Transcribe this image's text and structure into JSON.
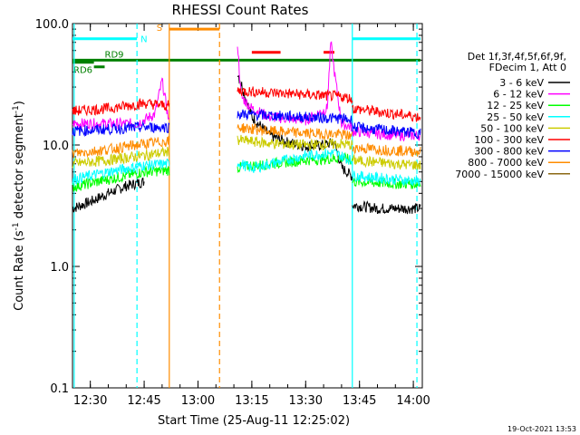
{
  "chart_data": {
    "type": "line",
    "title": "RHESSI Count Rates",
    "xlabel": "Start Time (25-Aug-11 12:25:02)",
    "ylabel": "Count Rate (s",
    "ylabel_sup1": "-1",
    "ylabel_mid": " detector segment",
    "ylabel_sup2": "-1",
    "ylabel_end": ")",
    "yscale": "log",
    "ylim": [
      0.1,
      100.0
    ],
    "xlim": [
      "12:25:02",
      "14:02:30"
    ],
    "x_ticks": [
      "12:30",
      "12:45",
      "13:00",
      "13:15",
      "13:30",
      "13:45",
      "14:00"
    ],
    "y_ticks": [
      "100.0",
      "10.0",
      "1.0",
      "0.1"
    ],
    "legend_header": [
      "Det 1f,3f,4f,5f,6f,9f,",
      "FDecim 1, Att 0"
    ],
    "timestamp": "19-Oct-2021 13:53",
    "series": [
      {
        "name": "3 - 6 keV",
        "color": "#000000",
        "segments": [
          {
            "x": [
              "12:25:02",
              "12:30",
              "12:35",
              "12:40",
              "12:45"
            ],
            "y": [
              3.0,
              3.4,
              4.0,
              4.6,
              5.0
            ]
          },
          {
            "x": [
              "13:11",
              "13:15",
              "13:20",
              "13:25",
              "13:30",
              "13:35",
              "13:38",
              "13:40",
              "13:43"
            ],
            "y": [
              40,
              17,
              12,
              10.5,
              9.8,
              10,
              10.5,
              6.5,
              5.5
            ]
          },
          {
            "x": [
              "13:43",
              "13:50",
              "13:55",
              "14:00",
              "14:02"
            ],
            "y": [
              3.2,
              3.0,
              3.0,
              3.0,
              3.0
            ]
          }
        ]
      },
      {
        "name": "6 - 12 keV",
        "color": "#ff00ff",
        "segments": [
          {
            "x": [
              "12:25:02",
              "12:35",
              "12:43",
              "12:48",
              "12:50",
              "12:52"
            ],
            "y": [
              15,
              15,
              15,
              18,
              34,
              15
            ]
          },
          {
            "x": [
              "13:11",
              "13:12",
              "13:15",
              "13:20",
              "13:30",
              "13:36",
              "13:37",
              "13:38",
              "13:40",
              "13:43"
            ],
            "y": [
              70,
              25,
              20,
              17,
              16,
              20,
              70,
              40,
              15,
              14
            ]
          },
          {
            "x": [
              "13:43",
              "13:55",
              "14:02"
            ],
            "y": [
              13,
              12,
              12
            ]
          }
        ]
      },
      {
        "name": "12 - 25 keV",
        "color": "#00ff00",
        "segments": [
          {
            "x": [
              "12:25:02",
              "12:35",
              "12:45",
              "12:52"
            ],
            "y": [
              4.5,
              5.2,
              6.0,
              6.2
            ]
          },
          {
            "x": [
              "13:11",
              "13:20",
              "13:30",
              "13:40",
              "13:43"
            ],
            "y": [
              6.5,
              7.0,
              7.5,
              7.8,
              7.5
            ]
          },
          {
            "x": [
              "13:43",
              "13:55",
              "14:02"
            ],
            "y": [
              5.0,
              4.8,
              4.8
            ]
          }
        ]
      },
      {
        "name": "25 - 50 keV",
        "color": "#00ffff",
        "segments": [
          {
            "x": [
              "12:25:02",
              "12:35",
              "12:45",
              "12:52"
            ],
            "y": [
              5.2,
              6.0,
              6.8,
              7.0
            ]
          },
          {
            "x": [
              "13:11",
              "13:15",
              "13:22",
              "13:30",
              "13:38",
              "13:43"
            ],
            "y": [
              7.2,
              6.4,
              7.2,
              8.2,
              8.6,
              7.4
            ]
          },
          {
            "x": [
              "13:43",
              "13:55",
              "14:02"
            ],
            "y": [
              5.6,
              5.2,
              5.0
            ]
          }
        ]
      },
      {
        "name": "50 - 100 keV",
        "color": "#cccc00",
        "segments": [
          {
            "x": [
              "12:25:02",
              "12:35",
              "12:45",
              "12:52"
            ],
            "y": [
              7.0,
              7.5,
              8.2,
              8.8
            ]
          },
          {
            "x": [
              "13:11",
              "13:20",
              "13:30",
              "13:40",
              "13:43"
            ],
            "y": [
              11.0,
              10.3,
              10.0,
              10.2,
              10.0
            ]
          },
          {
            "x": [
              "13:43",
              "13:55",
              "14:02"
            ],
            "y": [
              7.5,
              7.0,
              6.8
            ]
          }
        ]
      },
      {
        "name": "100 - 300 keV",
        "color": "#ff0000",
        "segments": [
          {
            "x": [
              "12:25:02",
              "12:35",
              "12:45",
              "12:52"
            ],
            "y": [
              19,
              20,
              22,
              21
            ]
          },
          {
            "x": [
              "13:11",
              "13:20",
              "13:30",
              "13:40",
              "13:43"
            ],
            "y": [
              28,
              27,
              26,
              25,
              24
            ]
          },
          {
            "x": [
              "13:43",
              "13:55",
              "14:02"
            ],
            "y": [
              20,
              18,
              17
            ]
          }
        ]
      },
      {
        "name": "300 - 800 keV",
        "color": "#0000ff",
        "segments": [
          {
            "x": [
              "12:25:02",
              "12:35",
              "12:45",
              "12:52"
            ],
            "y": [
              13,
              13.5,
              14,
              14
            ]
          },
          {
            "x": [
              "13:11",
              "13:20",
              "13:30",
              "13:40",
              "13:43"
            ],
            "y": [
              18,
              17.5,
              17,
              16.5,
              16
            ]
          },
          {
            "x": [
              "13:43",
              "13:55",
              "14:02"
            ],
            "y": [
              14,
              13,
              12.5
            ]
          }
        ]
      },
      {
        "name": "800 - 7000 keV",
        "color": "#ff8c00",
        "segments": [
          {
            "x": [
              "12:25:02",
              "12:35",
              "12:45",
              "12:52"
            ],
            "y": [
              8.5,
              9.2,
              10.2,
              10.8
            ]
          },
          {
            "x": [
              "13:11",
              "13:20",
              "13:30",
              "13:40",
              "13:43"
            ],
            "y": [
              14,
              13,
              12.5,
              12.2,
              11.8
            ]
          },
          {
            "x": [
              "13:43",
              "13:55",
              "14:02"
            ],
            "y": [
              9.5,
              9.0,
              8.8
            ]
          }
        ]
      },
      {
        "name": "7000 - 15000 keV",
        "color": "#8b6914",
        "segments": []
      }
    ],
    "annotations": [
      {
        "label": "N",
        "color": "#00ffff",
        "bar": [
          "12:25:02",
          "12:43"
        ],
        "y": 75
      },
      {
        "label": "",
        "color": "#00ffff",
        "bar": [
          "13:43",
          "14:02"
        ],
        "y": 75
      },
      {
        "label": "S",
        "color": "#ff8c00",
        "bar": [
          "12:52",
          "13:06"
        ],
        "y": 90
      },
      {
        "label": "RD9",
        "color": "#008000",
        "bar": [
          "12:25:02",
          "14:02"
        ],
        "y": 50
      },
      {
        "label": "RD6",
        "color": "#008000",
        "bar": [
          "12:25:02",
          "12:31"
        ],
        "y": 48
      },
      {
        "label": "",
        "color": "#008000",
        "bar": [
          "12:31",
          "12:34"
        ],
        "y": 44
      },
      {
        "label": "",
        "color": "#ff0000",
        "bar": [
          "13:15",
          "13:23"
        ],
        "y": 58
      },
      {
        "label": "",
        "color": "#ff0000",
        "bar": [
          "13:35",
          "13:38"
        ],
        "y": 58
      }
    ],
    "vlines": [
      {
        "x": "12:25:30",
        "color": "#00ffff",
        "dash": false
      },
      {
        "x": "12:43",
        "color": "#00ffff",
        "dash": true
      },
      {
        "x": "12:52",
        "color": "#ff8c00",
        "dash": false
      },
      {
        "x": "13:06",
        "color": "#ff8c00",
        "dash": true
      },
      {
        "x": "13:43",
        "color": "#00ffff",
        "dash": false
      },
      {
        "x": "14:01",
        "color": "#00ffff",
        "dash": true
      }
    ]
  }
}
